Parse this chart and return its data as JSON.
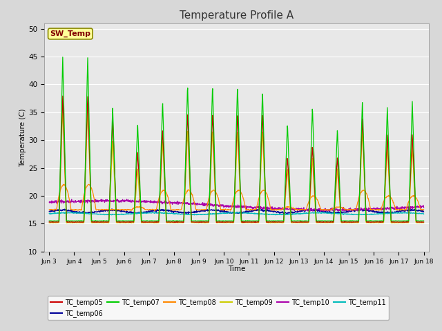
{
  "title": "Temperature Profile A",
  "xlabel": "Time",
  "ylabel": "Temperature (C)",
  "ylim": [
    10,
    51
  ],
  "yticks": [
    10,
    15,
    20,
    25,
    30,
    35,
    40,
    45,
    50
  ],
  "sw_temp_label": "SW_Temp",
  "sw_temp_box_color": "#ffff99",
  "sw_temp_text_color": "#800000",
  "series_colors": {
    "TC_temp05": "#cc0000",
    "TC_temp06": "#000099",
    "TC_temp07": "#00cc00",
    "TC_temp08": "#ff8800",
    "TC_temp09": "#cccc00",
    "TC_temp10": "#aa00aa",
    "TC_temp11": "#00bbbb"
  },
  "background_color": "#e8e8e8",
  "grid_color": "#ffffff",
  "title_fontsize": 11,
  "fig_facecolor": "#d8d8d8"
}
